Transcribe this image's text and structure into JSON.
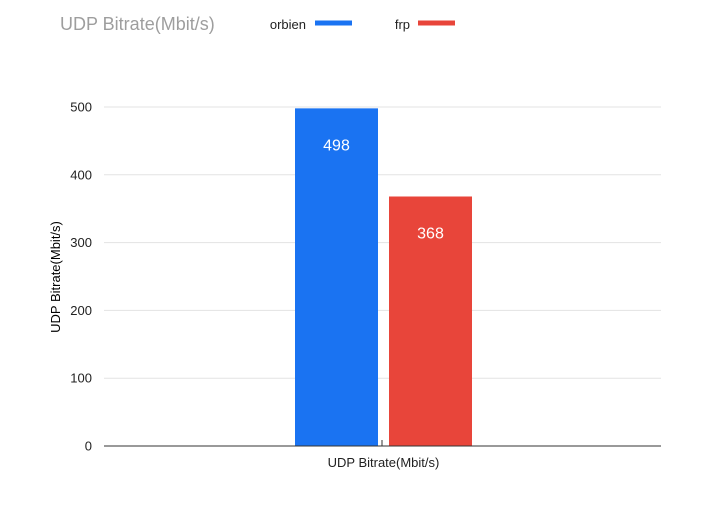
{
  "chart_data": {
    "type": "bar",
    "title": "UDP Bitrate(Mbit/s)",
    "categories": [
      "UDP Bitrate(Mbit/s)"
    ],
    "series": [
      {
        "name": "orbien",
        "values": [
          498
        ],
        "color": "#1a73f2"
      },
      {
        "name": "frp",
        "values": [
          368
        ],
        "color": "#e8453a"
      }
    ],
    "xlabel": "",
    "ylabel": "UDP Bitrate(Mbit/s)",
    "ylim": [
      0,
      500
    ],
    "yticks": [
      "0",
      "100",
      "200",
      "300",
      "400",
      "500"
    ],
    "grid": true,
    "legend_position": "top",
    "data_labels": true
  }
}
